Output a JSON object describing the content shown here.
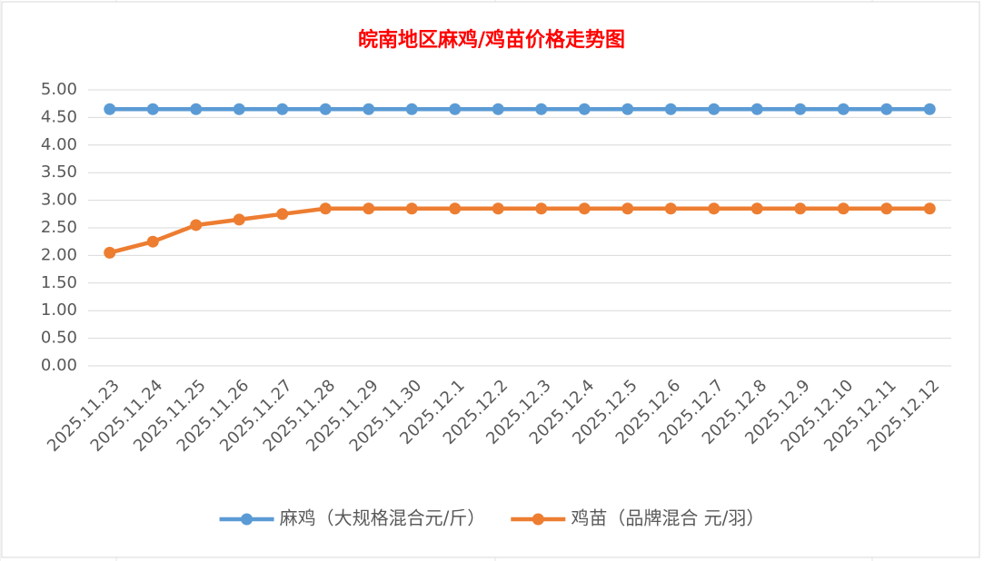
{
  "chart_data": {
    "type": "line",
    "title": "皖南地区麻鸡/鸡苗价格走势图",
    "categories": [
      "2025.11.23",
      "2025.11.24",
      "2025.11.25",
      "2025.11.26",
      "2025.11.27",
      "2025.11.28",
      "2025.11.29",
      "2025.11.30",
      "2025.12.1",
      "2025.12.2",
      "2025.12.3",
      "2025.12.4",
      "2025.12.5",
      "2025.12.6",
      "2025.12.7",
      "2025.12.8",
      "2025.12.9",
      "2025.12.10",
      "2025.12.11",
      "2025.12.12"
    ],
    "series": [
      {
        "name": "麻鸡（大规格混合元/斤）",
        "color": "#5b9bd5",
        "values": [
          4.65,
          4.65,
          4.65,
          4.65,
          4.65,
          4.65,
          4.65,
          4.65,
          4.65,
          4.65,
          4.65,
          4.65,
          4.65,
          4.65,
          4.65,
          4.65,
          4.65,
          4.65,
          4.65,
          4.65
        ]
      },
      {
        "name": "鸡苗（品牌混合 元/羽）",
        "color": "#ed7d31",
        "values": [
          2.05,
          2.25,
          2.55,
          2.65,
          2.75,
          2.85,
          2.85,
          2.85,
          2.85,
          2.85,
          2.85,
          2.85,
          2.85,
          2.85,
          2.85,
          2.85,
          2.85,
          2.85,
          2.85,
          2.85
        ]
      }
    ],
    "ylim": [
      0,
      5
    ],
    "yticks": [
      {
        "value": 0,
        "label": "0.00"
      },
      {
        "value": 0.5,
        "label": "0.50"
      },
      {
        "value": 1,
        "label": "1.00"
      },
      {
        "value": 1.5,
        "label": "1.50"
      },
      {
        "value": 2,
        "label": "2.00"
      },
      {
        "value": 2.5,
        "label": "2.50"
      },
      {
        "value": 3,
        "label": "3.00"
      },
      {
        "value": 3.5,
        "label": "3.50"
      },
      {
        "value": 4,
        "label": "4.00"
      },
      {
        "value": 4.5,
        "label": "4.50"
      },
      {
        "value": 5,
        "label": "5.00"
      }
    ],
    "grid": true,
    "legend": "bottom"
  }
}
